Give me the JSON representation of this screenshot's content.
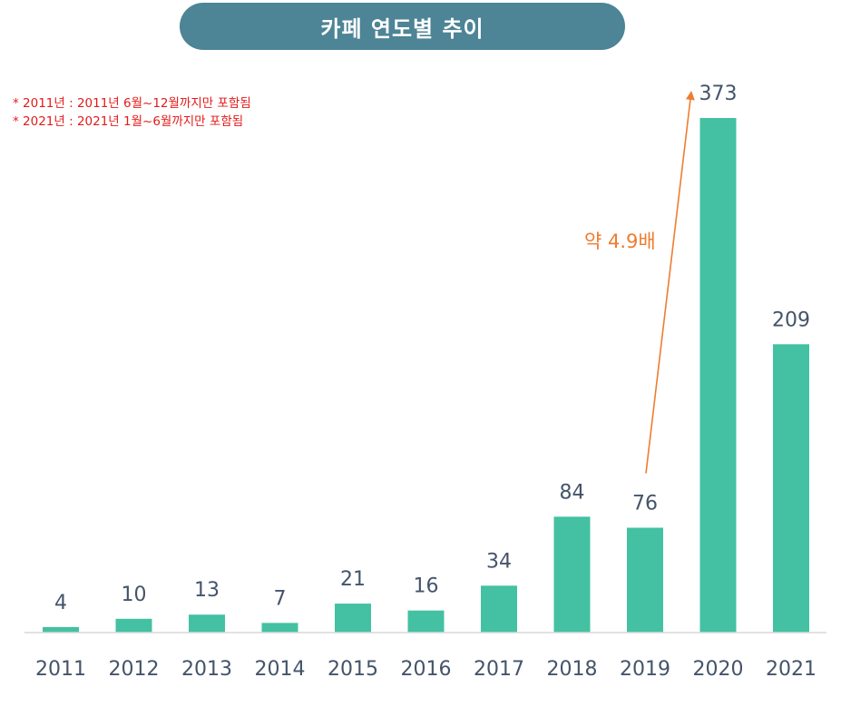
{
  "title": "카페 연도별 추이",
  "notes": [
    "* 2011년 : 2011년 6월~12월까지만 포함됨",
    "* 2021년 : 2021년 1월~6월까지만 포함됨"
  ],
  "annotation": {
    "label": "약 4.9배",
    "from_category": "2019",
    "to_category": "2020",
    "color": "#ed7d31"
  },
  "colors": {
    "bar": "#43c1a2",
    "title_bg": "#4d8496",
    "note_text": "#e31b1b",
    "label_text": "#44546a"
  },
  "chart_data": {
    "type": "bar",
    "categories": [
      "2011",
      "2012",
      "2013",
      "2014",
      "2015",
      "2016",
      "2017",
      "2018",
      "2019",
      "2020",
      "2021"
    ],
    "values": [
      4,
      10,
      13,
      7,
      21,
      16,
      34,
      84,
      76,
      373,
      209
    ],
    "title": "카페 연도별 추이",
    "xlabel": "",
    "ylabel": "",
    "ylim": [
      0,
      373
    ],
    "grid": false,
    "data_labels": true
  }
}
